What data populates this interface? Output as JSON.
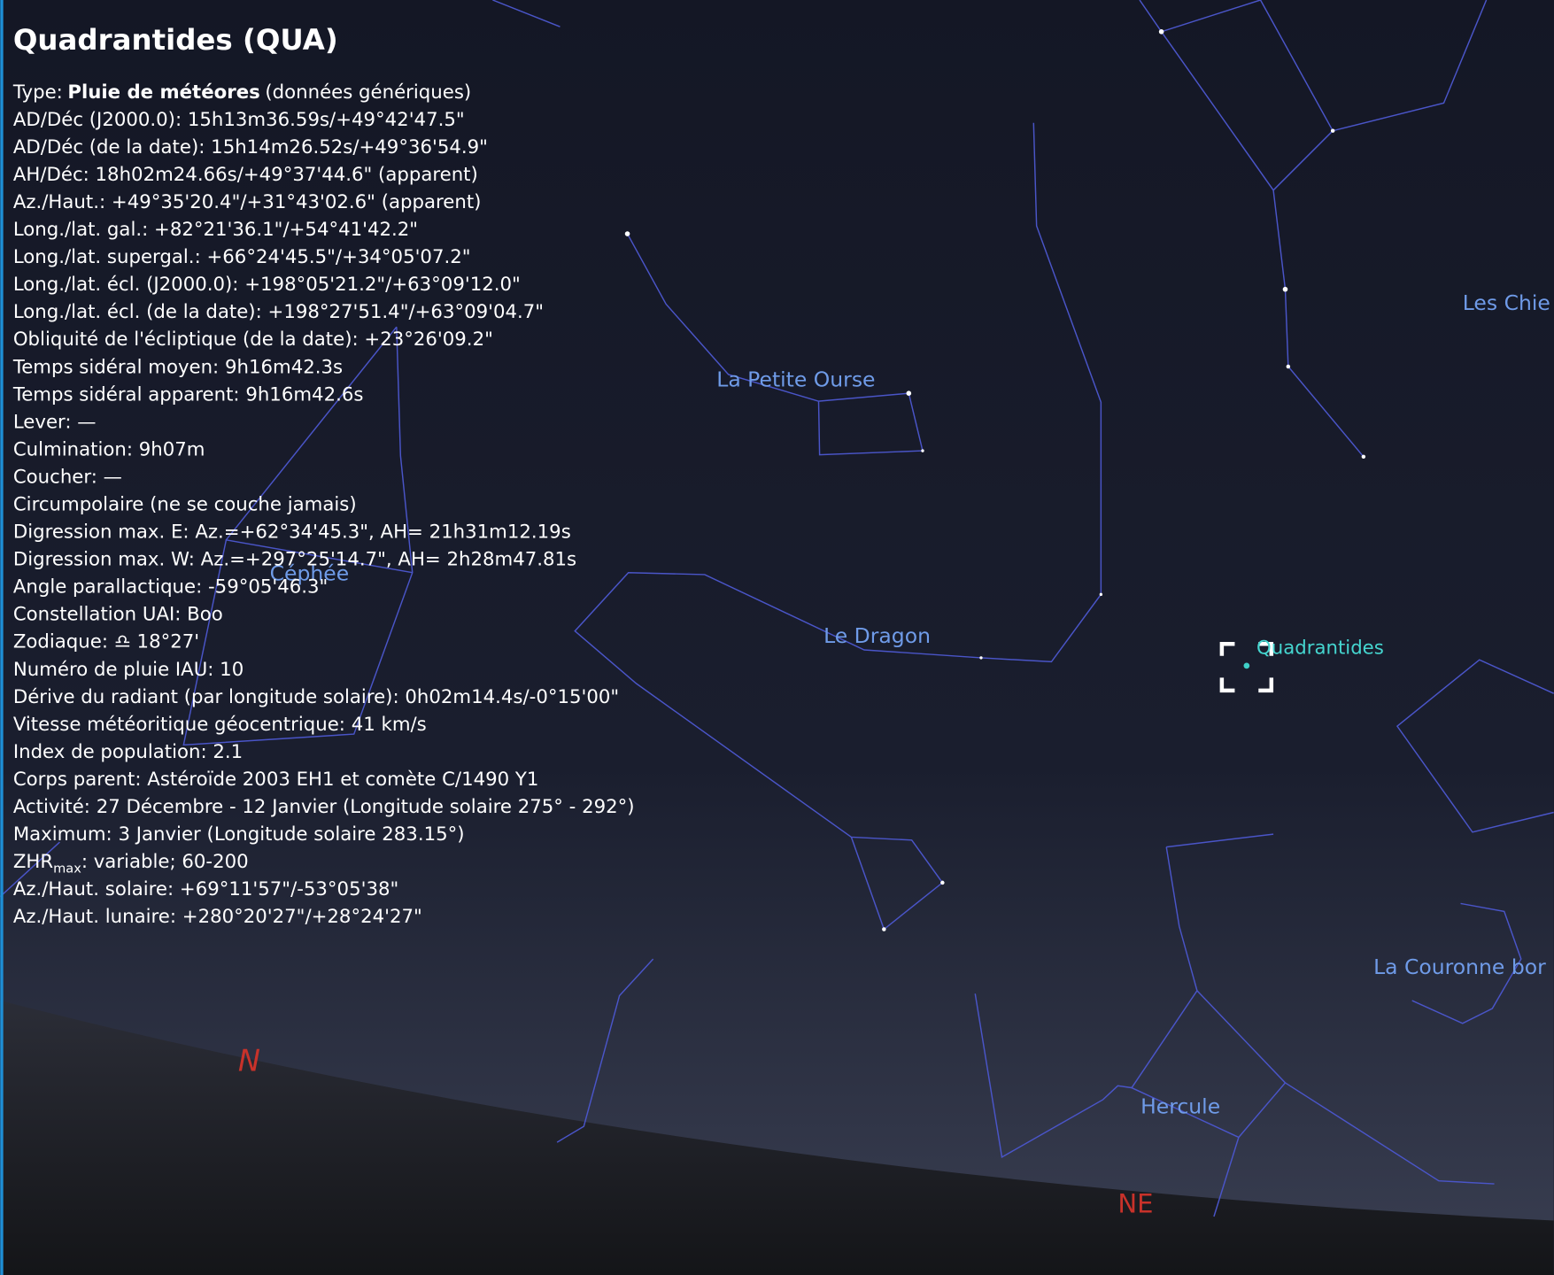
{
  "panel": {
    "title": "Quadrantides (QUA)",
    "type_line": {
      "label": "Type:",
      "value": "Pluie de météores",
      "note": "(données génériques)"
    },
    "lines": [
      "AD/Déc (J2000.0): 15h13m36.59s/+49°42'47.5\"",
      "AD/Déc (de la date): 15h14m26.52s/+49°36'54.9\"",
      "AH/Déc: 18h02m24.66s/+49°37'44.6\" (apparent)",
      "Az./Haut.: +49°35'20.4\"/+31°43'02.6\" (apparent)",
      "Long./lat. gal.: +82°21'36.1\"/+54°41'42.2\"",
      "Long./lat. supergal.: +66°24'45.5\"/+34°05'07.2\"",
      "Long./lat. écl. (J2000.0): +198°05'21.2\"/+63°09'12.0\"",
      "Long./lat. écl. (de la date): +198°27'51.4\"/+63°09'04.7\"",
      "Obliquité de l'écliptique (de la date): +23°26'09.2\"",
      "Temps sidéral moyen: 9h16m42.3s",
      "Temps sidéral apparent: 9h16m42.6s",
      "Lever: —",
      "Culmination: 9h07m",
      "Coucher: —",
      "Circumpolaire (ne se couche jamais)",
      "Digression max. E: Az.=+62°34'45.3\", AH= 21h31m12.19s",
      "Digression max. W: Az.=+297°25'14.7\", AH= 2h28m47.81s",
      "Angle parallactique: -59°05'46.3\"",
      "Constellation UAI: Boo",
      "Zodiaque: ♎ 18°27'",
      "Numéro de pluie IAU: 10",
      "Dérive du radiant (par longitude solaire): 0h02m14.4s/-0°15'00\"",
      "Vitesse météoritique géocentrique: 41 km/s",
      "Index de population: 2.1",
      "Corps parent: Astéroïde 2003 EH1 et comète C/1490 Y1",
      "Activité: 27 Décembre - 12 Janvier (Longitude solaire 275° - 292°)",
      "Maximum: 3 Janvier (Longitude solaire 283.15°)"
    ],
    "zhr_line": {
      "main": "ZHR",
      "sub": "max",
      "rest": ": variable; 60-200"
    },
    "tail_lines": [
      "Az./Haut. solaire: +69°11'57\"/-53°05'38\"",
      "Az./Haut. lunaire: +280°20'27\"/+28°24'27\""
    ]
  },
  "sky_labels": {
    "les_chiens": "Les Chie",
    "petite_ourse": "La Petite Ourse",
    "cephee": "Céphée",
    "dragon": "Le Dragon",
    "quadrantides": "Quadrantides",
    "couronne": "La Couronne bor",
    "hercule": "Hercule",
    "north": "N",
    "northeast": "NE"
  }
}
